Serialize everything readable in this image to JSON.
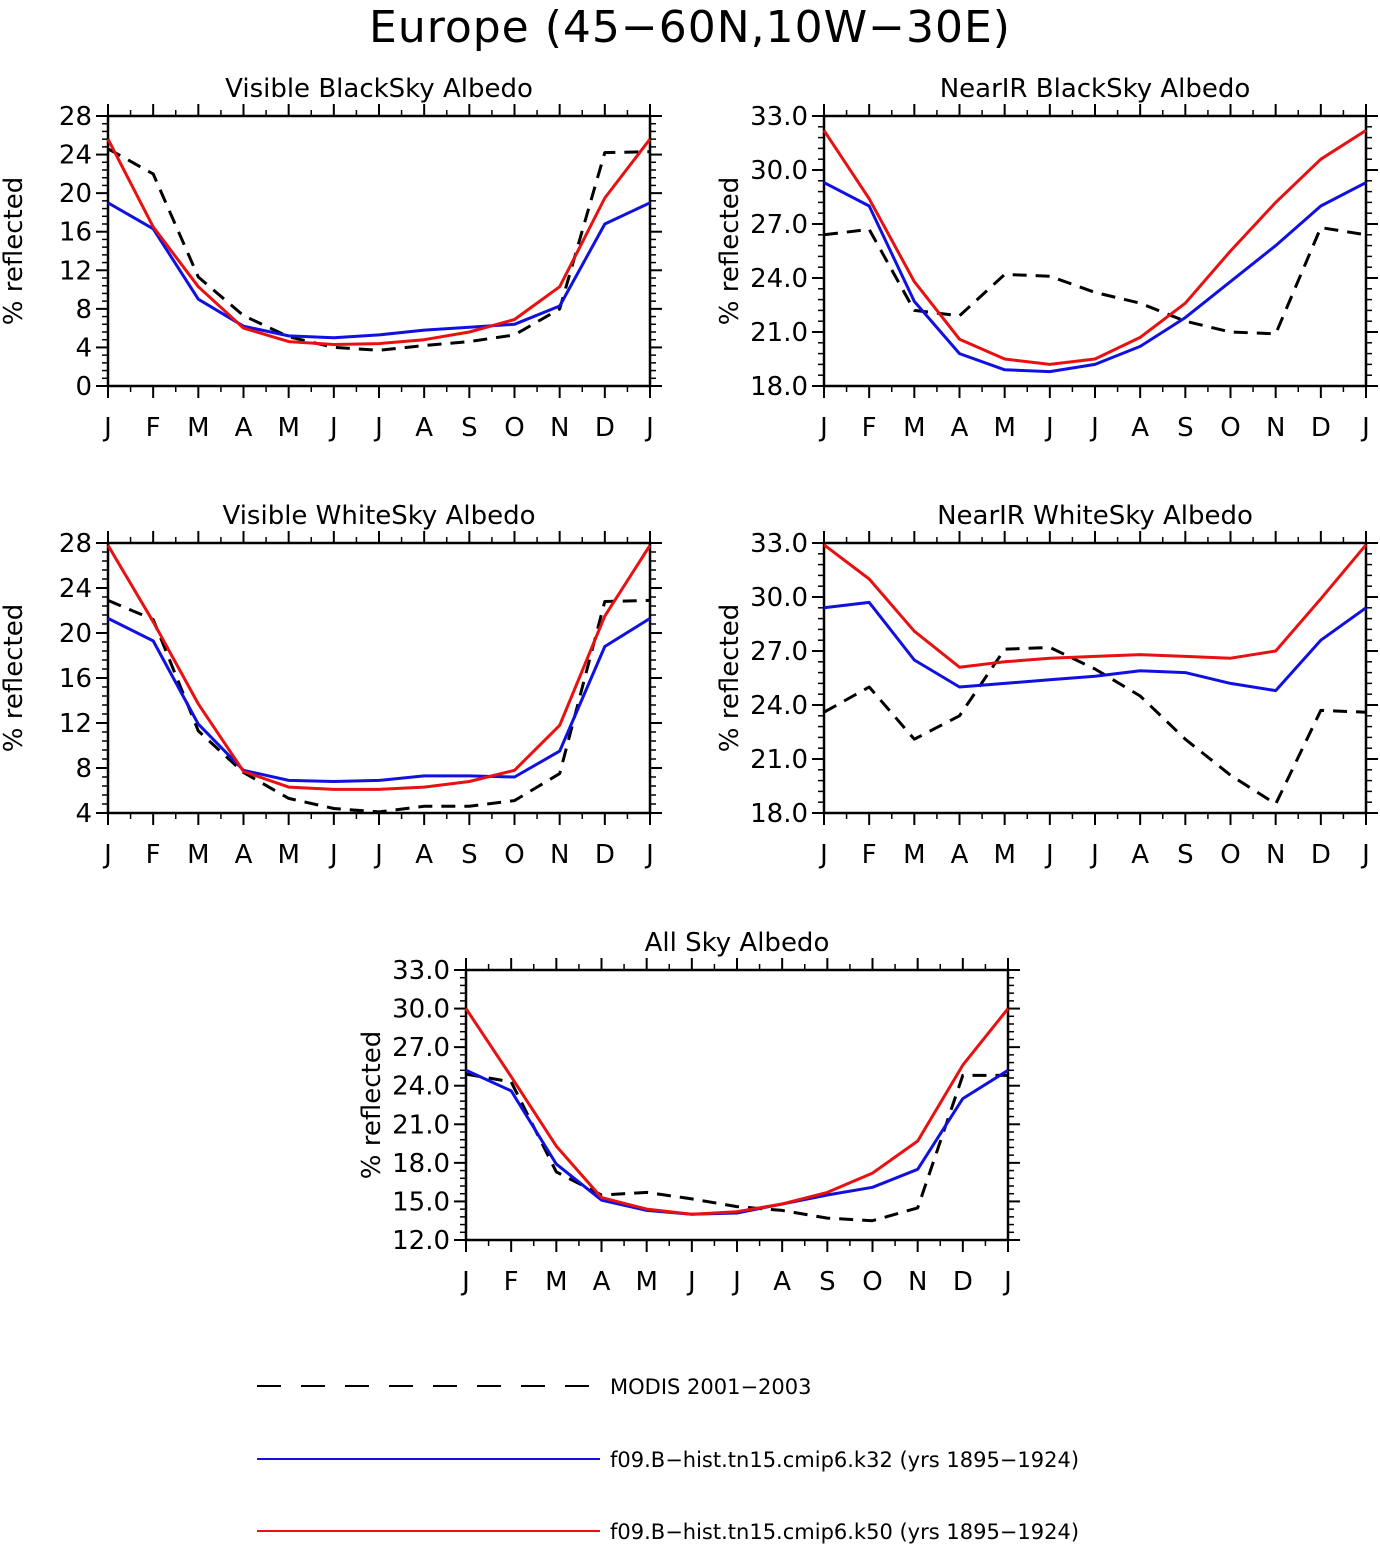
{
  "figure": {
    "title": "Europe (45−60N,10W−30E)"
  },
  "colors": {
    "modis": "#000000",
    "k32": "#1010e0",
    "k50": "#e81010"
  },
  "chart_data": [
    {
      "id": "vis-black",
      "type": "line",
      "title": "Visible BlackSky Albedo",
      "ylabel": "% reflected",
      "xlabel": "",
      "categories": [
        "J",
        "F",
        "M",
        "A",
        "M",
        "J",
        "J",
        "A",
        "S",
        "O",
        "N",
        "D",
        "J"
      ],
      "ylim": [
        0,
        28
      ],
      "yticks": [
        "0",
        "4",
        "8",
        "12",
        "16",
        "20",
        "24",
        "28"
      ],
      "ytick_values": [
        0,
        4,
        8,
        12,
        16,
        20,
        24,
        28
      ],
      "grid": false,
      "series": [
        {
          "key": "modis",
          "values": [
            24.6,
            22.0,
            11.3,
            7.3,
            5.1,
            4.0,
            3.7,
            4.2,
            4.6,
            5.3,
            8.0,
            24.2,
            24.3
          ]
        },
        {
          "key": "k32",
          "values": [
            19.0,
            16.3,
            9.0,
            6.2,
            5.2,
            5.0,
            5.3,
            5.8,
            6.1,
            6.4,
            8.3,
            16.8,
            19.0
          ]
        },
        {
          "key": "k50",
          "values": [
            25.6,
            16.5,
            10.3,
            6.0,
            4.6,
            4.3,
            4.4,
            4.8,
            5.6,
            6.9,
            10.3,
            19.5,
            25.6
          ]
        }
      ]
    },
    {
      "id": "nir-black",
      "type": "line",
      "title": "NearIR BlackSky Albedo",
      "ylabel": "% reflected",
      "xlabel": "",
      "categories": [
        "J",
        "F",
        "M",
        "A",
        "M",
        "J",
        "J",
        "A",
        "S",
        "O",
        "N",
        "D",
        "J"
      ],
      "ylim": [
        18,
        33
      ],
      "yticks": [
        "18.0",
        "21.0",
        "24.0",
        "27.0",
        "30.0",
        "33.0"
      ],
      "ytick_values": [
        18,
        21,
        24,
        27,
        30,
        33
      ],
      "grid": false,
      "series": [
        {
          "key": "modis",
          "values": [
            26.4,
            26.7,
            22.2,
            21.9,
            24.2,
            24.1,
            23.2,
            22.6,
            21.6,
            21.0,
            20.9,
            26.8,
            26.4
          ]
        },
        {
          "key": "k32",
          "values": [
            29.3,
            28.0,
            22.7,
            19.8,
            18.9,
            18.8,
            19.2,
            20.2,
            21.8,
            23.8,
            25.8,
            28.0,
            29.3
          ]
        },
        {
          "key": "k50",
          "values": [
            32.2,
            28.4,
            23.8,
            20.6,
            19.5,
            19.2,
            19.5,
            20.7,
            22.6,
            25.5,
            28.2,
            30.6,
            32.2
          ]
        }
      ]
    },
    {
      "id": "vis-white",
      "type": "line",
      "title": "Visible WhiteSky Albedo",
      "ylabel": "% reflected",
      "xlabel": "",
      "categories": [
        "J",
        "F",
        "M",
        "A",
        "M",
        "J",
        "J",
        "A",
        "S",
        "O",
        "N",
        "D",
        "J"
      ],
      "ylim": [
        4,
        28
      ],
      "yticks": [
        "4",
        "8",
        "12",
        "16",
        "20",
        "24",
        "28"
      ],
      "ytick_values": [
        4,
        8,
        12,
        16,
        20,
        24,
        28
      ],
      "grid": false,
      "series": [
        {
          "key": "modis",
          "values": [
            22.9,
            21.2,
            11.3,
            7.6,
            5.3,
            4.4,
            4.1,
            4.6,
            4.6,
            5.1,
            7.5,
            22.8,
            22.9
          ]
        },
        {
          "key": "k32",
          "values": [
            21.3,
            19.3,
            11.9,
            7.8,
            6.9,
            6.8,
            6.9,
            7.3,
            7.3,
            7.2,
            9.5,
            18.8,
            21.3
          ]
        },
        {
          "key": "k50",
          "values": [
            27.8,
            21.0,
            13.7,
            7.7,
            6.3,
            6.1,
            6.1,
            6.3,
            6.8,
            7.8,
            11.8,
            21.5,
            27.8
          ]
        }
      ]
    },
    {
      "id": "nir-white",
      "type": "line",
      "title": "NearIR WhiteSky Albedo",
      "ylabel": "% reflected",
      "xlabel": "",
      "categories": [
        "J",
        "F",
        "M",
        "A",
        "M",
        "J",
        "J",
        "A",
        "S",
        "O",
        "N",
        "D",
        "J"
      ],
      "ylim": [
        18,
        33
      ],
      "yticks": [
        "18.0",
        "21.0",
        "24.0",
        "27.0",
        "30.0",
        "33.0"
      ],
      "ytick_values": [
        18,
        21,
        24,
        27,
        30,
        33
      ],
      "grid": false,
      "series": [
        {
          "key": "modis",
          "values": [
            23.6,
            25.0,
            22.1,
            23.4,
            27.1,
            27.2,
            26.0,
            24.5,
            22.1,
            20.1,
            18.5,
            23.7,
            23.6
          ]
        },
        {
          "key": "k32",
          "values": [
            29.4,
            29.7,
            26.5,
            25.0,
            25.2,
            25.4,
            25.6,
            25.9,
            25.8,
            25.2,
            24.8,
            27.6,
            29.4
          ]
        },
        {
          "key": "k50",
          "values": [
            32.9,
            31.0,
            28.1,
            26.1,
            26.4,
            26.6,
            26.7,
            26.8,
            26.7,
            26.6,
            27.0,
            29.9,
            32.9
          ]
        }
      ]
    },
    {
      "id": "all-sky",
      "type": "line",
      "title": "All Sky Albedo",
      "ylabel": "% reflected",
      "xlabel": "",
      "categories": [
        "J",
        "F",
        "M",
        "A",
        "M",
        "J",
        "J",
        "A",
        "S",
        "O",
        "N",
        "D",
        "J"
      ],
      "ylim": [
        12,
        33
      ],
      "yticks": [
        "12.0",
        "15.0",
        "18.0",
        "21.0",
        "24.0",
        "27.0",
        "30.0",
        "33.0"
      ],
      "ytick_values": [
        12,
        15,
        18,
        21,
        24,
        27,
        30,
        33
      ],
      "grid": false,
      "series": [
        {
          "key": "modis",
          "values": [
            24.9,
            24.3,
            17.3,
            15.5,
            15.7,
            15.2,
            14.6,
            14.3,
            13.7,
            13.5,
            14.5,
            24.8,
            24.8
          ]
        },
        {
          "key": "k32",
          "values": [
            25.2,
            23.6,
            17.9,
            15.1,
            14.3,
            14.0,
            14.1,
            14.8,
            15.5,
            16.1,
            17.5,
            23.0,
            25.2
          ]
        },
        {
          "key": "k50",
          "values": [
            30.0,
            24.7,
            19.3,
            15.3,
            14.4,
            14.0,
            14.2,
            14.8,
            15.7,
            17.2,
            19.7,
            25.6,
            30.0
          ]
        }
      ]
    }
  ],
  "legend": {
    "placement": "bottom",
    "entries": [
      {
        "key": "modis",
        "label": "MODIS 2001−2003",
        "style": "dashed"
      },
      {
        "key": "k32",
        "label": "f09.B−hist.tn15.cmip6.k32 (yrs 1895−1924)",
        "style": "solid"
      },
      {
        "key": "k50",
        "label": "f09.B−hist.tn15.cmip6.k50 (yrs 1895−1924)",
        "style": "solid"
      }
    ]
  }
}
